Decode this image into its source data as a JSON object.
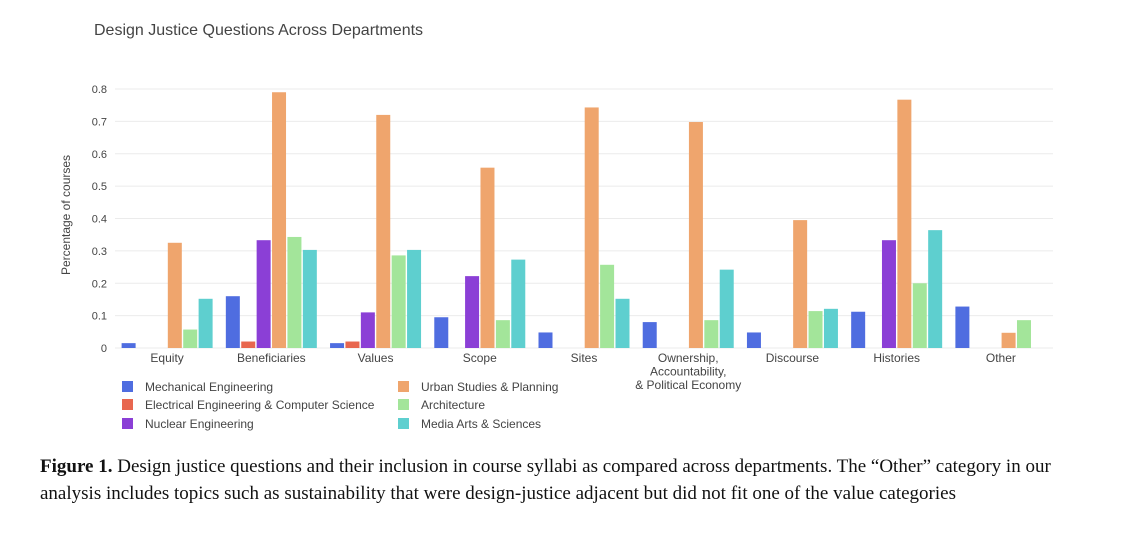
{
  "chart_data": {
    "type": "bar",
    "title": "Design Justice Questions Across Departments",
    "ylabel": "Percentage of courses",
    "xlabel": "",
    "ylim": [
      0,
      0.82
    ],
    "yticks": [
      "0",
      "0.1",
      "0.2",
      "0.3",
      "0.4",
      "0.5",
      "0.6",
      "0.7",
      "0.8"
    ],
    "grid": true,
    "legend_position": "bottom-left",
    "categories": [
      [
        "Equity"
      ],
      [
        "Beneficiaries"
      ],
      [
        "Values"
      ],
      [
        "Scope"
      ],
      [
        "Sites"
      ],
      [
        "Ownership,",
        "Accountability,",
        "& Political Economy"
      ],
      [
        "Discourse"
      ],
      [
        "Histories"
      ],
      [
        "Other"
      ]
    ],
    "series": [
      {
        "name": "Mechanical Engineering",
        "color": "#4f6de0",
        "values": [
          0.015,
          0.16,
          0.015,
          0.095,
          0.048,
          0.08,
          0.048,
          0.112,
          0.128
        ]
      },
      {
        "name": "Electrical Engineering & Computer Science",
        "color": "#e8674f",
        "values": [
          0,
          0.02,
          0.02,
          0,
          0,
          0,
          0,
          0,
          0
        ]
      },
      {
        "name": "Nuclear Engineering",
        "color": "#8b3fd6",
        "values": [
          0,
          0.333,
          0.11,
          0.222,
          0,
          0,
          0,
          0.333,
          0
        ]
      },
      {
        "name": "Urban Studies & Planning",
        "color": "#efa56d",
        "values": [
          0.325,
          0.79,
          0.72,
          0.557,
          0.743,
          0.698,
          0.395,
          0.767,
          0.047
        ]
      },
      {
        "name": "Architecture",
        "color": "#a3e59a",
        "values": [
          0.057,
          0.343,
          0.286,
          0.086,
          0.257,
          0.086,
          0.114,
          0.2,
          0.086
        ]
      },
      {
        "name": "Media Arts & Sciences",
        "color": "#5ecfcf",
        "values": [
          0.152,
          0.303,
          0.303,
          0.273,
          0.152,
          0.242,
          0.121,
          0.364,
          0
        ]
      }
    ]
  },
  "caption": {
    "label": "Figure 1.",
    "text": " Design justice questions and their inclusion in course syllabi as compared across departments. The “Other” category in our analysis includes topics such as sustainability that were design-justice adjacent but did not fit one of the value categories"
  }
}
